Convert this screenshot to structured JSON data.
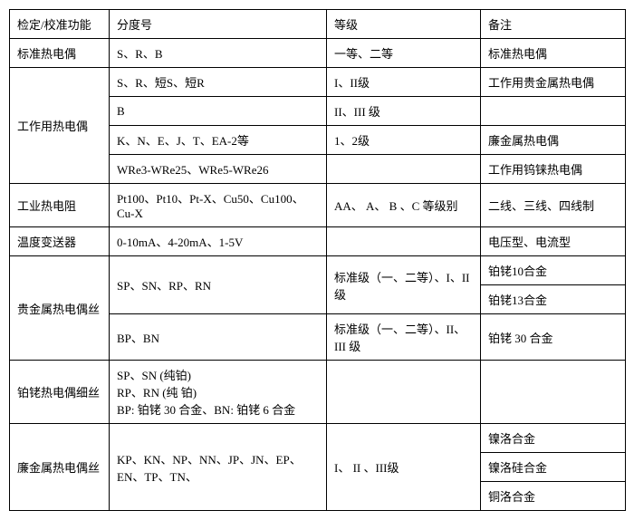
{
  "header": {
    "col1": "检定/校准功能",
    "col2": "分度号",
    "col3": "等级",
    "col4": "备注"
  },
  "rows": {
    "r1": {
      "c1": "标准热电偶",
      "c2": "S、R、B",
      "c3": "一等、二等",
      "c4": "标准热电偶"
    },
    "r2": {
      "c2": "S、R、短S、短R",
      "c3": "I、II级",
      "c4": "工作用贵金属热电偶"
    },
    "r3": {
      "c2": "B",
      "c3": "II、III 级",
      "c4": ""
    },
    "r4": {
      "c1": "工作用热电偶",
      "c2": "K、N、E、J、T、EA-2等",
      "c3": "1、2级",
      "c4": "廉金属热电偶"
    },
    "r5": {
      "c2": "WRe3-WRe25、WRe5-WRe26",
      "c3": "",
      "c4": "工作用钨铼热电偶"
    },
    "r6": {
      "c1": "工业热电阻",
      "c2": "Pt100、Pt10、Pt-X、Cu50、Cu100、Cu-X",
      "c3": "AA、 A、 B 、C 等级别",
      "c4": "二线、三线、四线制"
    },
    "r7": {
      "c1": "温度变送器",
      "c2": "0-10mA、4-20mA、1-5V",
      "c3": "",
      "c4": "电压型、电流型"
    },
    "r8a": {
      "c2": "SP、SN、RP、RN",
      "c3": "标准级（一、二等）、I、II级",
      "c4": "铂铑10合金"
    },
    "r8b": {
      "c4": "铂铑13合金"
    },
    "r9": {
      "c1": "贵金属热电偶丝",
      "c2": "BP、BN",
      "c3": "标准级（一、二等）、II、 III 级",
      "c4": "铂铑 30 合金"
    },
    "r10": {
      "c1": "铂铑热电偶细丝",
      "c2": "SP、SN (纯铂)\nRP、RN (纯 铂)\nBP: 铂铑 30 合金、BN: 铂铑 6 合金",
      "c3": "",
      "c4": ""
    },
    "r11a": {
      "c1": "廉金属热电偶丝",
      "c2": "KP、KN、NP、NN、JP、JN、EP、EN、TP、TN、",
      "c3": "I、 II 、III级",
      "c4": "镍洛合金"
    },
    "r11b": {
      "c4": "镍洛硅合金"
    },
    "r11c": {
      "c4": "铜洛合金"
    }
  }
}
